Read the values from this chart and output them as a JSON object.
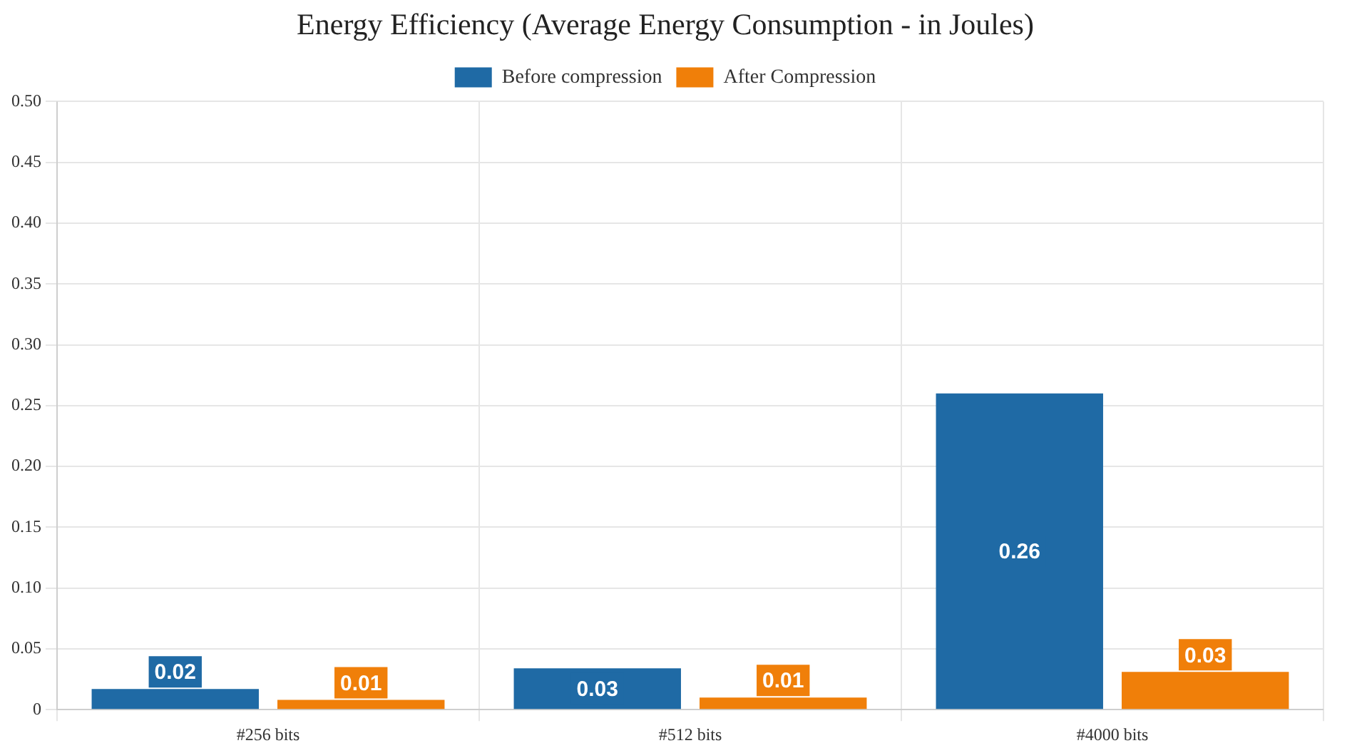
{
  "chart_data": {
    "type": "bar",
    "title": "Energy Efficiency (Average Energy Consumption - in Joules)",
    "categories": [
      "#256 bits",
      "#512 bits",
      "#4000 bits"
    ],
    "series": [
      {
        "name": "Before compression",
        "color": "#1f6aa5",
        "values": [
          0.017,
          0.034,
          0.26
        ],
        "value_labels": [
          "0.02",
          "0.03",
          "0.26"
        ]
      },
      {
        "name": "After Compression",
        "color": "#f07f09",
        "values": [
          0.008,
          0.01,
          0.031
        ],
        "value_labels": [
          "0.01",
          "0.01",
          "0.03"
        ]
      }
    ],
    "ylim": [
      0,
      0.5
    ],
    "yticks": [
      0,
      {
        "value": 0.05,
        "label": "0.05"
      },
      {
        "value": 0.1,
        "label": "0.10"
      },
      {
        "value": 0.15,
        "label": "0.15"
      },
      {
        "value": 0.2,
        "label": "0.20"
      },
      {
        "value": 0.25,
        "label": "0.25"
      },
      {
        "value": 0.3,
        "label": "0.30"
      },
      {
        "value": 0.35,
        "label": "0.35"
      },
      {
        "value": 0.4,
        "label": "0.40"
      },
      {
        "value": 0.45,
        "label": "0.45"
      },
      {
        "value": 0.5,
        "label": "0.50"
      }
    ],
    "grid": true,
    "legend": "top"
  }
}
